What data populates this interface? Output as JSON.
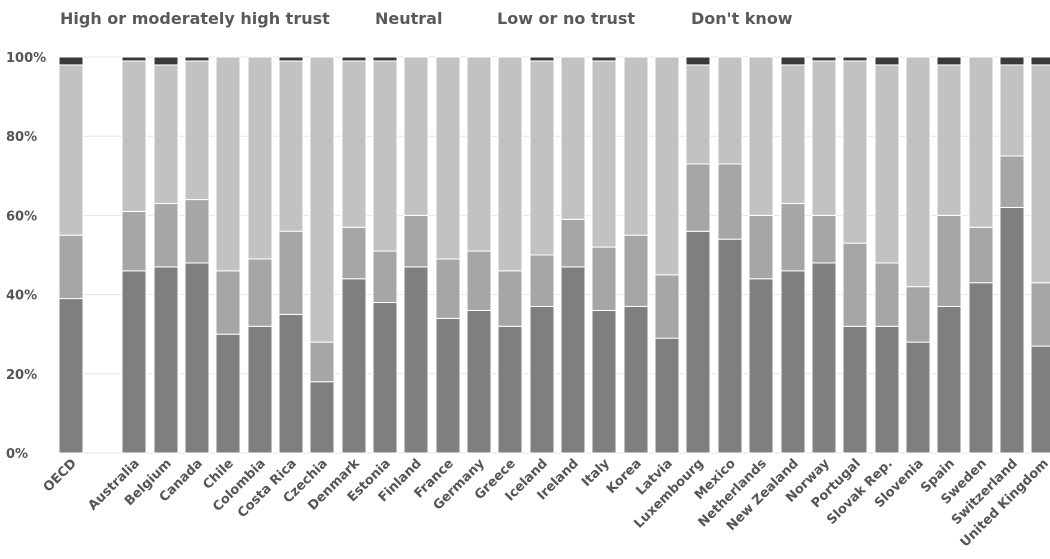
{
  "chart_data": {
    "type": "bar",
    "stacked": true,
    "legend_position": "top",
    "title": "",
    "xlabel": "",
    "ylabel": "",
    "ylim": [
      0,
      100
    ],
    "y_ticks": [
      "0%",
      "20%",
      "40%",
      "60%",
      "80%",
      "100%"
    ],
    "categories": [
      "OECD",
      "Australia",
      "Belgium",
      "Canada",
      "Chile",
      "Colombia",
      "Costa Rica",
      "Czechia",
      "Denmark",
      "Estonia",
      "Finland",
      "France",
      "Germany",
      "Greece",
      "Iceland",
      "Ireland",
      "Italy",
      "Korea",
      "Latvia",
      "Luxembourg",
      "Mexico",
      "Netherlands",
      "New Zealand",
      "Norway",
      "Portugal",
      "Slovak Rep.",
      "Slovenia",
      "Spain",
      "Sweden",
      "Switzerland",
      "United Kingdom"
    ],
    "series": [
      {
        "name": "High or moderately high trust",
        "color": "#7f7f7f",
        "values": [
          39,
          46,
          47,
          48,
          30,
          32,
          35,
          18,
          44,
          38,
          47,
          34,
          36,
          32,
          37,
          47,
          36,
          37,
          29,
          56,
          54,
          44,
          46,
          48,
          32,
          32,
          28,
          37,
          43,
          62,
          27
        ]
      },
      {
        "name": "Neutral",
        "color": "#a6a6a6",
        "values": [
          16,
          15,
          16,
          16,
          16,
          17,
          21,
          10,
          13,
          13,
          13,
          15,
          15,
          14,
          13,
          12,
          16,
          18,
          16,
          17,
          19,
          16,
          17,
          12,
          21,
          16,
          14,
          23,
          14,
          13,
          16
        ]
      },
      {
        "name": "Low or no trust",
        "color": "#c2c2c2",
        "values": [
          43,
          38,
          35,
          35,
          54,
          51,
          43,
          72,
          42,
          48,
          40,
          51,
          49,
          54,
          49,
          41,
          47,
          45,
          55,
          25,
          27,
          40,
          35,
          39,
          46,
          50,
          58,
          38,
          43,
          23,
          55
        ]
      },
      {
        "name": "Don't know",
        "color": "#3a3a3a",
        "values": [
          2,
          1,
          2,
          1,
          0,
          0,
          1,
          0,
          1,
          1,
          0,
          0,
          0,
          0,
          1,
          0,
          1,
          0,
          0,
          2,
          0,
          0,
          2,
          1,
          1,
          2,
          0,
          2,
          0,
          2,
          2
        ]
      }
    ]
  }
}
